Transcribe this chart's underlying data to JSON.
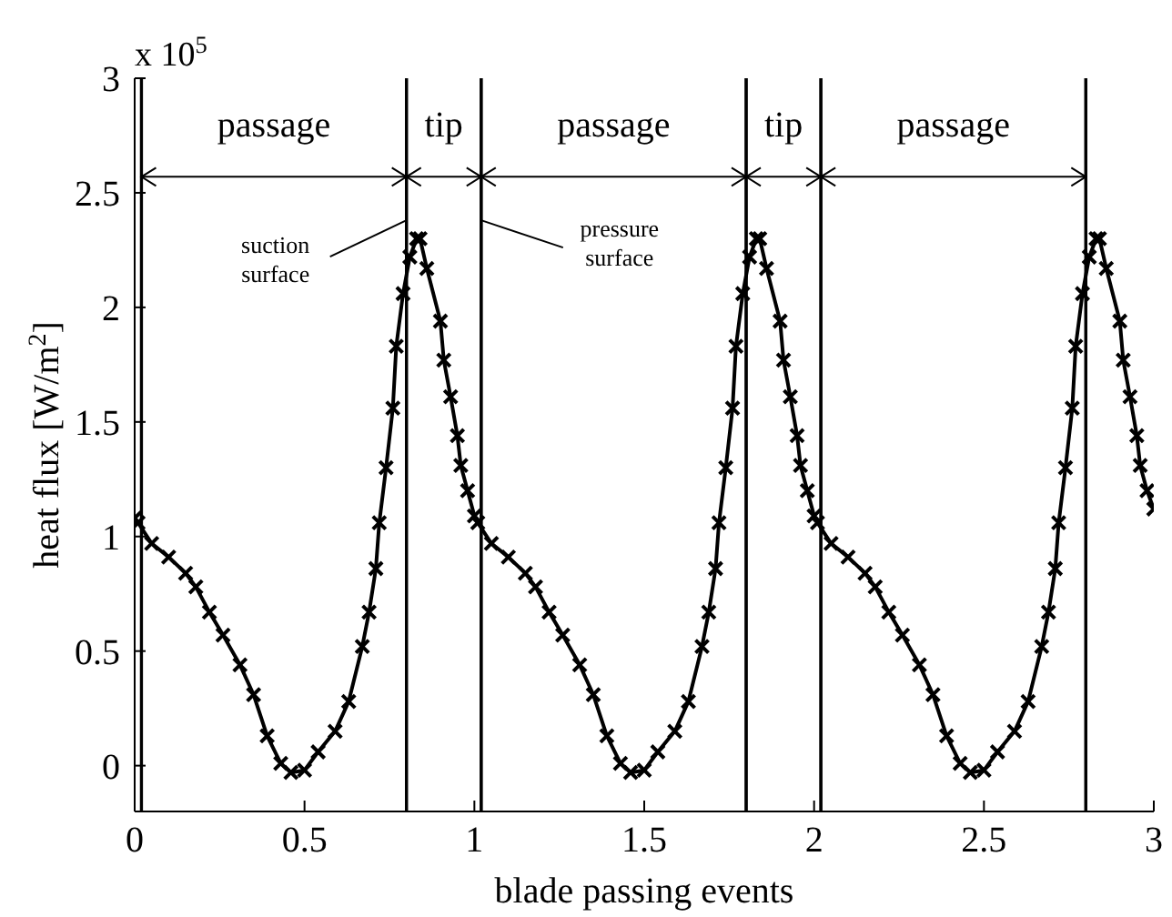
{
  "chart_data": {
    "type": "line",
    "xlabel": "blade passing events",
    "ylabel": "heat flux  [W/m$^{2}$]",
    "x": [
      0,
      0.01,
      0.05,
      0.1,
      0.15,
      0.18,
      0.22,
      0.26,
      0.31,
      0.35,
      0.39,
      0.43,
      0.46,
      0.5,
      0.54,
      0.59,
      0.63,
      0.67,
      0.69,
      0.71,
      0.72,
      0.74,
      0.76,
      0.77,
      0.79,
      0.81,
      0.83,
      0.84,
      0.86,
      0.9,
      0.91,
      0.93,
      0.95,
      0.96,
      0.98,
      1,
      1.01,
      1.05,
      1.1,
      1.15,
      1.18,
      1.22,
      1.26,
      1.31,
      1.35,
      1.39,
      1.43,
      1.46,
      1.5,
      1.54,
      1.59,
      1.63,
      1.67,
      1.69,
      1.71,
      1.72,
      1.74,
      1.76,
      1.77,
      1.79,
      1.81,
      1.83,
      1.84,
      1.86,
      1.9,
      1.91,
      1.93,
      1.95,
      1.96,
      1.98,
      2,
      2.01,
      2.05,
      2.1,
      2.15,
      2.18,
      2.22,
      2.26,
      2.31,
      2.35,
      2.39,
      2.43,
      2.46,
      2.5,
      2.54,
      2.59,
      2.63,
      2.67,
      2.69,
      2.71,
      2.72,
      2.74,
      2.76,
      2.77,
      2.79,
      2.81,
      2.83,
      2.84,
      2.86,
      2.9,
      2.91,
      2.93,
      2.95,
      2.96,
      2.98,
      3
    ],
    "series": [
      {
        "color": "#000000",
        "values": [
          1.08,
          1.06,
          0.97,
          0.91,
          0.84,
          0.78,
          0.67,
          0.57,
          0.44,
          0.31,
          0.13,
          0.01,
          -0.03,
          -0.02,
          0.06,
          0.15,
          0.28,
          0.52,
          0.67,
          0.86,
          1.06,
          1.3,
          1.56,
          1.83,
          2.06,
          2.22,
          2.3,
          2.3,
          2.17,
          1.94,
          1.77,
          1.61,
          1.44,
          1.31,
          1.2,
          1.09,
          1.06,
          0.97,
          0.91,
          0.84,
          0.78,
          0.67,
          0.57,
          0.44,
          0.31,
          0.13,
          0.01,
          -0.03,
          -0.02,
          0.06,
          0.15,
          0.28,
          0.52,
          0.67,
          0.86,
          1.06,
          1.3,
          1.56,
          1.83,
          2.06,
          2.22,
          2.3,
          2.3,
          2.17,
          1.94,
          1.77,
          1.61,
          1.44,
          1.31,
          1.2,
          1.09,
          1.06,
          0.97,
          0.91,
          0.84,
          0.78,
          0.67,
          0.57,
          0.44,
          0.31,
          0.13,
          0.01,
          -0.03,
          -0.02,
          0.06,
          0.15,
          0.28,
          0.52,
          0.67,
          0.86,
          1.06,
          1.3,
          1.56,
          1.83,
          2.06,
          2.22,
          2.3,
          2.3,
          2.17,
          1.94,
          1.77,
          1.61,
          1.44,
          1.31,
          1.2,
          1.12
        ]
      }
    ],
    "xlim": [
      0,
      3
    ],
    "xticks": [
      0,
      0.5,
      1,
      1.5,
      2,
      2.5,
      3
    ],
    "ylim": [
      -0.2,
      3
    ],
    "yticks": [
      0,
      0.5,
      1,
      1.5,
      2,
      2.5,
      3
    ],
    "marker": "cross",
    "line_style": "solid",
    "grid": false,
    "legend": false,
    "ref_lines": [
      {
        "axis": "x",
        "value": 0.02
      },
      {
        "axis": "x",
        "value": 0.8
      },
      {
        "axis": "x",
        "value": 1.02
      },
      {
        "axis": "x",
        "value": 1.8
      },
      {
        "axis": "x",
        "value": 2.02
      },
      {
        "axis": "x",
        "value": 2.8
      }
    ],
    "annotations": [
      {
        "text": "passage",
        "x": 0.8,
        "y": 2.57
      },
      {
        "text": "tip",
        "x": 1.02,
        "y": 2.57
      },
      {
        "text": "passage",
        "x": 1.8,
        "y": 2.57
      },
      {
        "text": "tip",
        "x": 2.02,
        "y": 2.57
      },
      {
        "text": "passage",
        "x": 2.8,
        "y": 2.57
      },
      {
        "text": "suction\nsurface",
        "x": 0.8,
        "y": 2.38
      },
      {
        "text": "pressure\nsurface",
        "x": 1.02,
        "y": 2.38
      },
      "x 10$^{5}$"
    ]
  }
}
